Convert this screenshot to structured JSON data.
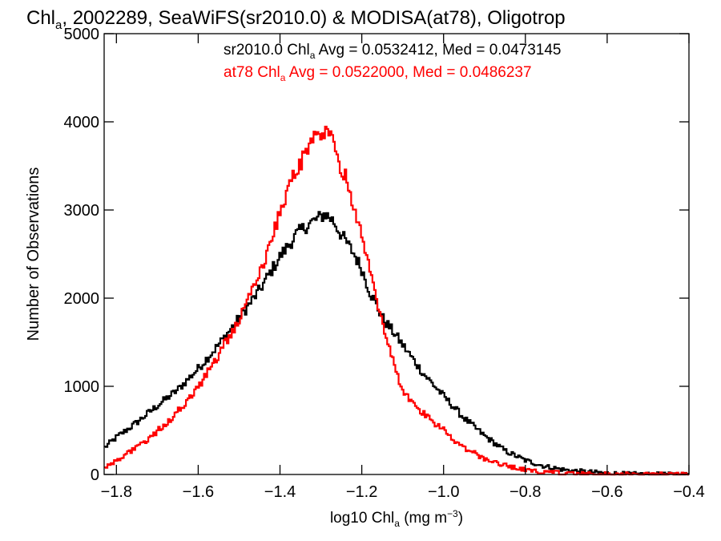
{
  "chart_data": {
    "type": "line",
    "title": {
      "prefix": "Chl",
      "subscript": "a",
      "rest": ", 2002289, SeaWiFS(sr2010.0) & MODISA(at78), Oligotrop"
    },
    "xlabel": {
      "prefix": "log10 Chl",
      "subscript": "a",
      "middle": " (mg m",
      "superscript": "−3",
      "suffix": ")"
    },
    "ylabel": "Number of Observations",
    "xlim": [
      -1.83,
      -0.4
    ],
    "ylim": [
      0,
      5000
    ],
    "x_ticks": [
      -1.8,
      -1.6,
      -1.4,
      -1.2,
      -1.0,
      -0.8,
      -0.6,
      -0.4
    ],
    "x_tick_labels": [
      "−1.8",
      "−1.6",
      "−1.4",
      "−1.2",
      "−1.0",
      "−0.8",
      "−0.6",
      "−0.4"
    ],
    "y_ticks": [
      0,
      1000,
      2000,
      3000,
      4000,
      5000
    ],
    "y_tick_labels": [
      "0",
      "1000",
      "2000",
      "3000",
      "4000",
      "5000"
    ],
    "grid": false,
    "legend_position": "top-right",
    "annotations": [
      {
        "color": "#000000",
        "prefix": "sr2010.0 Chl",
        "subscript": "a",
        "suffix": " Avg = 0.0532412, Med = 0.0473145"
      },
      {
        "color": "#ff0000",
        "prefix": "at78 Chl",
        "subscript": "a",
        "suffix": " Avg = 0.0522000, Med = 0.0486237"
      }
    ],
    "series": [
      {
        "color": "#000000",
        "x": [
          -1.83,
          -1.8,
          -1.75,
          -1.7,
          -1.65,
          -1.6,
          -1.55,
          -1.5,
          -1.45,
          -1.4,
          -1.36,
          -1.33,
          -1.3,
          -1.29,
          -1.27,
          -1.25,
          -1.22,
          -1.2,
          -1.18,
          -1.15,
          -1.12,
          -1.1,
          -1.05,
          -1.0,
          -0.95,
          -0.9,
          -0.85,
          -0.8,
          -0.75,
          -0.7,
          -0.65,
          -0.6,
          -0.55,
          -0.5,
          -0.45,
          -0.4
        ],
        "values": [
          300,
          420,
          590,
          780,
          960,
          1200,
          1470,
          1770,
          2090,
          2470,
          2720,
          2840,
          2920,
          2960,
          2880,
          2720,
          2510,
          2330,
          2070,
          1780,
          1600,
          1470,
          1150,
          890,
          640,
          440,
          270,
          160,
          90,
          50,
          30,
          15,
          5,
          2,
          0,
          0
        ]
      },
      {
        "color": "#ff0000",
        "x": [
          -1.83,
          -1.8,
          -1.75,
          -1.7,
          -1.65,
          -1.6,
          -1.55,
          -1.5,
          -1.45,
          -1.4,
          -1.37,
          -1.34,
          -1.32,
          -1.3,
          -1.29,
          -1.28,
          -1.26,
          -1.24,
          -1.22,
          -1.2,
          -1.18,
          -1.16,
          -1.14,
          -1.12,
          -1.1,
          -1.05,
          -1.0,
          -0.95,
          -0.9,
          -0.85,
          -0.8,
          -0.75,
          -0.7,
          -0.65,
          -0.6,
          -0.55,
          -0.5,
          -0.4
        ],
        "values": [
          80,
          160,
          300,
          490,
          710,
          990,
          1360,
          1760,
          2270,
          2960,
          3340,
          3620,
          3800,
          3850,
          3870,
          3860,
          3600,
          3380,
          3050,
          2690,
          2320,
          1920,
          1580,
          1250,
          950,
          690,
          500,
          300,
          180,
          100,
          50,
          25,
          10,
          5,
          2,
          0,
          0,
          0
        ]
      }
    ]
  }
}
